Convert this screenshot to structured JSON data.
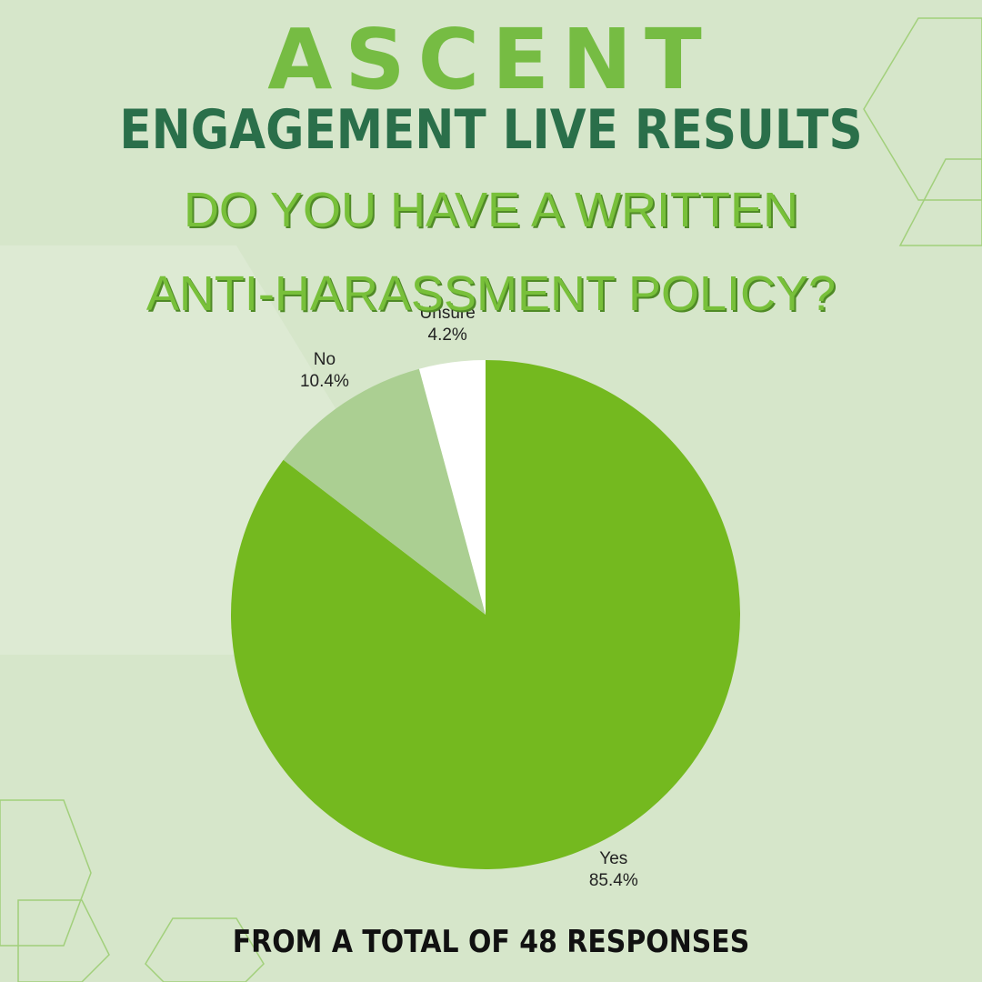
{
  "brand": "ASCENT",
  "heading": "ENGAGEMENT LIVE RESULTS",
  "footer": "FROM A TOTAL OF 48 RESPONSES",
  "chart_data": {
    "type": "pie",
    "title": "DO YOU HAVE A WRITTEN ANTI-HARASSMENT POLICY?",
    "categories": [
      "Yes",
      "No",
      "Unsure"
    ],
    "values": [
      85.4,
      10.4,
      4.2
    ],
    "value_labels": [
      "85.4%",
      "10.4%",
      "4.2%"
    ],
    "colors": [
      "#74b91f",
      "#abcf92",
      "#ffffff"
    ]
  }
}
